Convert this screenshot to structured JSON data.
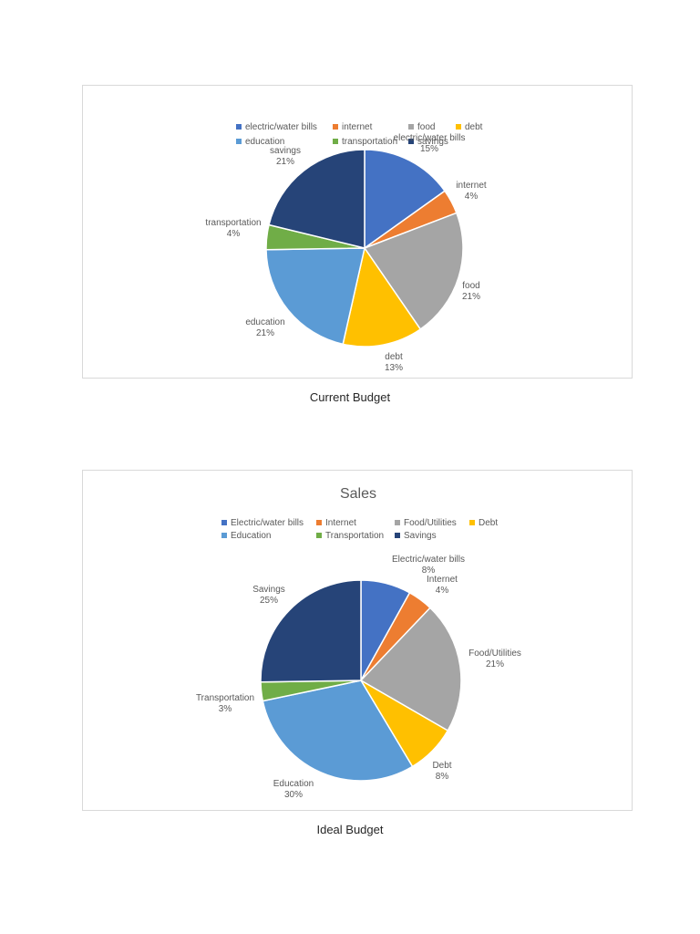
{
  "chart_data": [
    {
      "type": "pie",
      "title": "",
      "caption": "Current Budget",
      "categories": [
        "electric/water bills",
        "internet",
        "food",
        "debt",
        "education",
        "transportation",
        "savings"
      ],
      "values": [
        15,
        4,
        21,
        13,
        21,
        4,
        21
      ],
      "labels": [
        "15%",
        "4%",
        "21%",
        "13%",
        "21%",
        "4%",
        "21%"
      ],
      "colors": [
        "#4472c4",
        "#ed7d31",
        "#a5a5a5",
        "#ffc000",
        "#5b9bd5",
        "#70ad47",
        "#264478"
      ],
      "legend_position": "top"
    },
    {
      "type": "pie",
      "title": "Sales",
      "caption": "Ideal Budget",
      "categories": [
        "Electric/water bills",
        "Internet",
        "Food/Utilities",
        "Debt",
        "Education",
        "Transportation",
        "Savings"
      ],
      "values": [
        8,
        4,
        21,
        8,
        30,
        3,
        25
      ],
      "labels": [
        "8%",
        "4%",
        "21%",
        "8%",
        "30%",
        "3%",
        "25%"
      ],
      "colors": [
        "#4472c4",
        "#ed7d31",
        "#a5a5a5",
        "#ffc000",
        "#5b9bd5",
        "#70ad47",
        "#264478"
      ],
      "legend_position": "top"
    }
  ]
}
